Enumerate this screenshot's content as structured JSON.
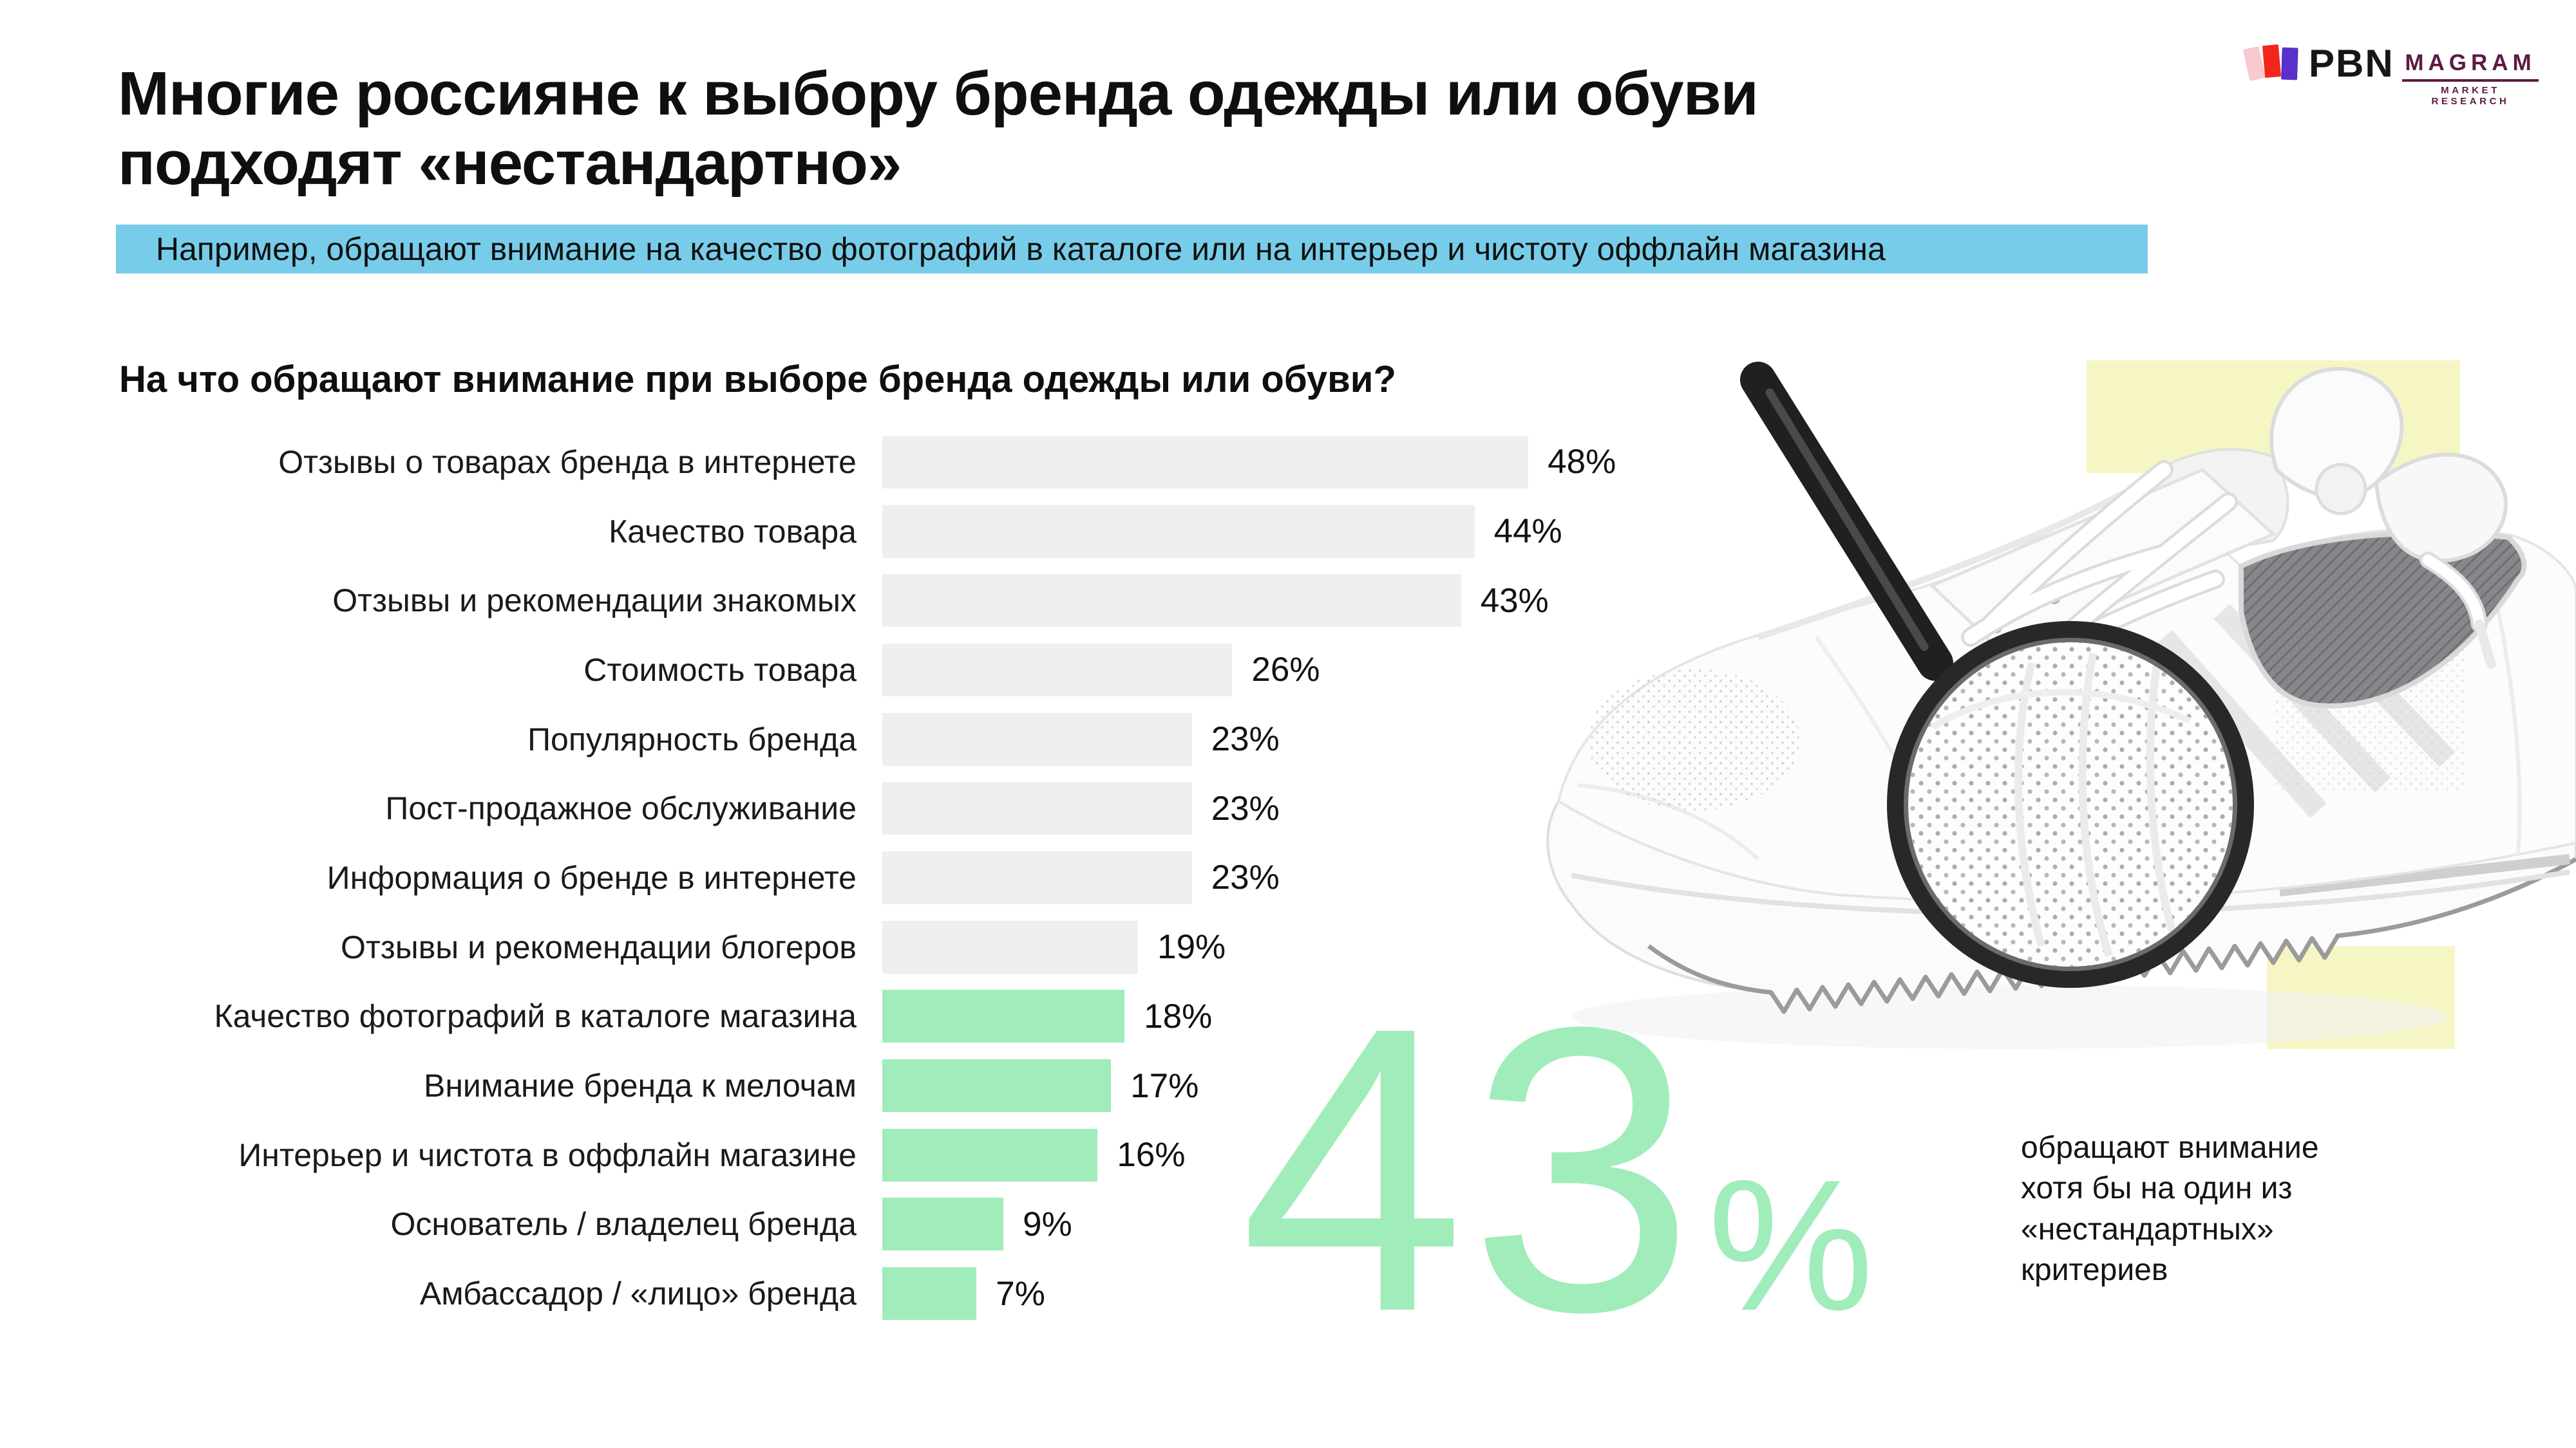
{
  "slide": {
    "title": "Многие россияне к выбору бренда одежды или обуви\nподходят «нестандартно»",
    "subtitle": "Например, обращают внимание на качество фотографий в каталоге или на интерьер и чистоту оффлайн магазина"
  },
  "logos": {
    "pbn": {
      "name": "PBN"
    },
    "magram": {
      "name": "MAGRAM",
      "tagline": "MARKET RESEARCH"
    }
  },
  "chart_data": {
    "type": "bar",
    "orientation": "horizontal",
    "title": "На что обращают внимание при выборе бренда одежды или обуви?",
    "unit": "%",
    "xlim": [
      0,
      50
    ],
    "categories": [
      "Отзывы о товарах бренда в интернете",
      "Качество товара",
      "Отзывы и рекомендации знакомых",
      "Стоимость товара",
      "Популярность бренда",
      "Пост-продажное обслуживание",
      "Информация о бренде в интернете",
      "Отзывы и рекомендации блогеров",
      "Качество фотографий в каталоге магазина",
      "Внимание бренда к мелочам",
      "Интерьер и чистота в оффлайн магазине",
      "Основатель / владелец бренда",
      "Амбассадор / «лицо» бренда"
    ],
    "values": [
      48,
      44,
      43,
      26,
      23,
      23,
      23,
      19,
      18,
      17,
      16,
      9,
      7
    ],
    "standard_bar_color": "#efefef",
    "nonstandard_bar_color": "#a1ecbb",
    "nonstandard_start_index": 8,
    "legend": "none",
    "grid": false
  },
  "callout": {
    "value": "43",
    "unit": "%",
    "text": "обращают внимание\nхотя бы на один из\n«нестандартных»\nкритериев",
    "color": "#a1ecbb"
  },
  "colors": {
    "banner_bg": "#77cde9",
    "accent_green": "#a1ecbb",
    "bar_gray": "#efefef",
    "decor_yellow": "#f6f6c4",
    "magram_brand": "#5d1b42",
    "pbn_bars": [
      "#f9c8d0",
      "#f3261b",
      "#5b2fc9"
    ]
  },
  "illustration": {
    "label": "white sneaker inspected with magnifying glass"
  }
}
